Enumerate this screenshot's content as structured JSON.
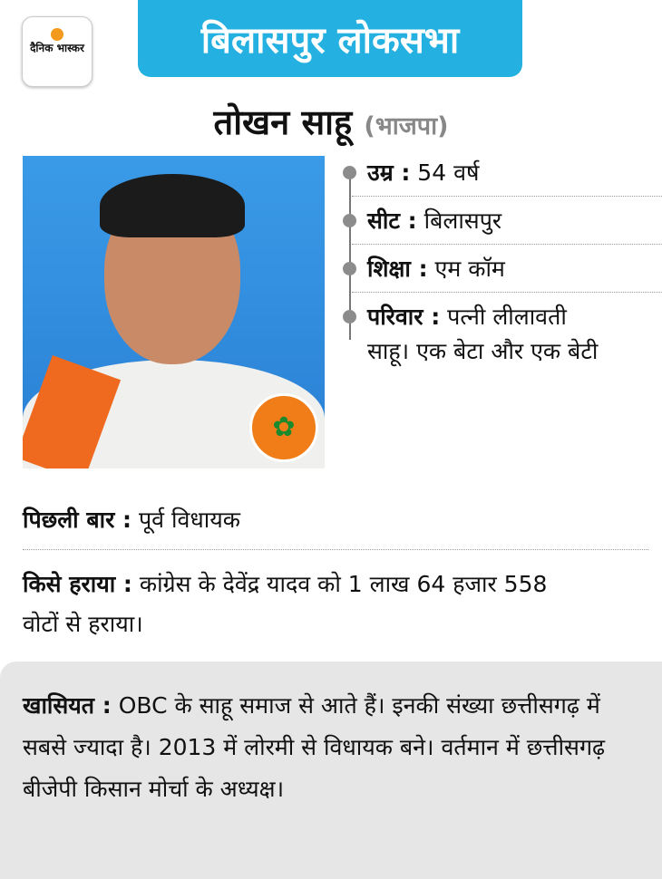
{
  "brand": {
    "logo_text": "दैनिक भास्कर",
    "accent": "#f39a1d"
  },
  "banner": {
    "title": "बिलासपुर लोकसभा",
    "color": "#24b0e0"
  },
  "candidate": {
    "name": "तोखन साहू",
    "party": "(भाजपा)",
    "party_symbol": "lotus-icon"
  },
  "facts": [
    {
      "label": "उम्र :",
      "value": " 54 वर्ष"
    },
    {
      "label": "सीट :",
      "value": " बिलासपुर"
    },
    {
      "label": "शिक्षा :",
      "value": "  एम कॉम"
    },
    {
      "label": "परिवार :",
      "value": " पत्नी लीलावती साहू। एक बेटा और एक बेटी"
    }
  ],
  "previous": {
    "label": "पिछली बार :",
    "value": " पूर्व विधायक"
  },
  "defeated": {
    "label": "किसे हराया :",
    "value": " कांग्रेस के देवेंद्र यादव को 1 लाख 64 हजार 558 वोटों से हराया।"
  },
  "highlight": {
    "label": "खासियत :",
    "value": " OBC के साहू समाज से आते हैं। इनकी संख्या छत्तीसगढ़ में सबसे ज्यादा है। 2013 में लोरमी से विधायक बने। वर्तमान में छत्तीसगढ़ बीजेपी किसान मोर्चा के अध्यक्ष।"
  }
}
